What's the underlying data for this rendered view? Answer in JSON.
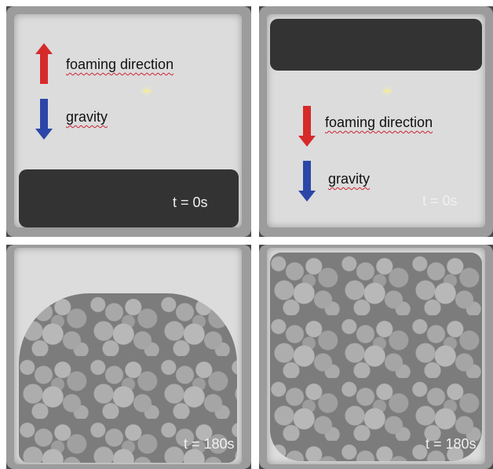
{
  "panels": {
    "top_left": {
      "label_foaming": "foaming direction",
      "label_gravity": "gravity",
      "time": "t = 0s",
      "foaming_arrow": "up-arrow-icon",
      "gravity_arrow": "down-arrow-icon"
    },
    "top_right": {
      "label_foaming": "foaming direction",
      "label_gravity": "gravity",
      "time": "t = 0s",
      "foaming_arrow": "down-arrow-icon",
      "gravity_arrow": "down-arrow-icon"
    },
    "bottom_left": {
      "time": "t = 180s"
    },
    "bottom_right": {
      "time": "t = 180s"
    }
  },
  "colors": {
    "foaming_arrow": "#d62a2a",
    "gravity_arrow": "#2b46a8"
  }
}
